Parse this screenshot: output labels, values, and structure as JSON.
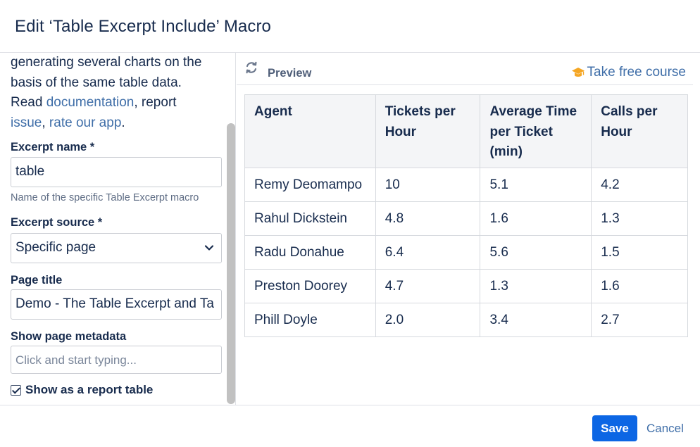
{
  "dialog": {
    "title": "Edit ‘Table Excerpt Include’ Macro"
  },
  "sidebar": {
    "description_parts": {
      "line1": "generating several charts on the",
      "line2": "basis of the same table data.",
      "read": "Read ",
      "documentation_link": "documentation",
      "comma1": ", report",
      "issue_link": "issue",
      "comma2": ", ",
      "rate_link": "rate our app",
      "period": "."
    },
    "excerpt_name": {
      "label": "Excerpt name *",
      "value": "table",
      "hint": "Name of the specific Table Excerpt macro"
    },
    "excerpt_source": {
      "label": "Excerpt source *",
      "selected": "Specific page"
    },
    "page_title": {
      "label": "Page title",
      "value": "Demo - The Table Excerpt and Ta"
    },
    "page_metadata": {
      "label": "Show page metadata",
      "placeholder": "Click and start typing..."
    },
    "report_table": {
      "label": "Show as a report table",
      "checked": true
    }
  },
  "preview": {
    "label": "Preview",
    "course_link": "Take free course",
    "icons": {
      "refresh": "refresh-icon",
      "course": "graduation-cap-icon"
    },
    "accent_color": "#f5a623"
  },
  "table": {
    "headers": [
      "Agent",
      "Tickets per Hour",
      "Average Time per Ticket (min)",
      "Calls per Hour"
    ],
    "rows": [
      [
        "Remy Deomampo",
        "10",
        "5.1",
        "4.2"
      ],
      [
        "Rahul Dickstein",
        "4.8",
        "1.6",
        "1.3"
      ],
      [
        "Radu Donahue",
        "6.4",
        "5.6",
        "1.5"
      ],
      [
        "Preston Doorey",
        "4.7",
        "1.3",
        "1.6"
      ],
      [
        "Phill Doyle",
        "2.0",
        "3.4",
        "2.7"
      ]
    ]
  },
  "footer": {
    "save_label": "Save",
    "cancel_label": "Cancel",
    "primary_color": "#0c66e4"
  }
}
